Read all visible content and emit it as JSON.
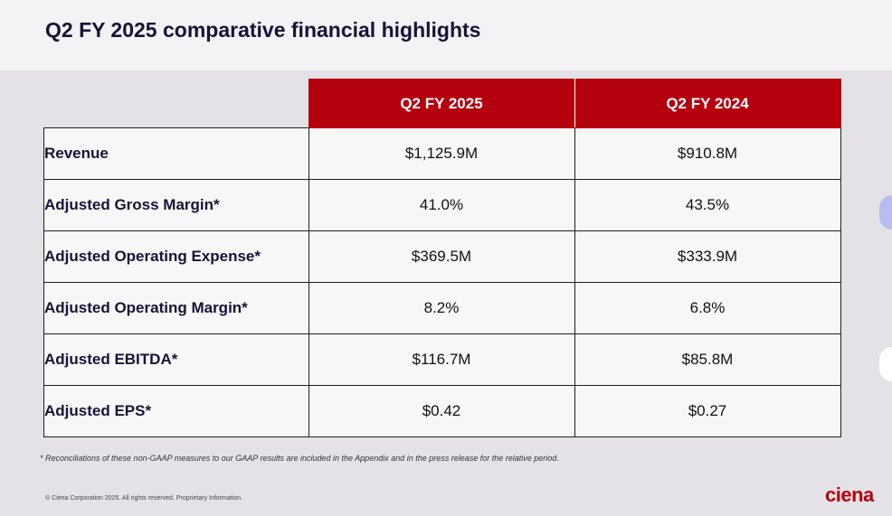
{
  "slide": {
    "title": "Q2 FY 2025 comparative financial highlights",
    "footnote": "* Reconciliations of these non-GAAP measures to our GAAP results are included in the Appendix and in the press release for the relative period.",
    "copyright": "© Ciena Corporation 2025. All rights reserved. Proprietary Information.",
    "logo_text": "ciena",
    "brand_color": "#b5000e"
  },
  "table": {
    "columns": [
      "Q2 FY 2025",
      "Q2 FY 2024"
    ],
    "rows": [
      {
        "label": "Revenue",
        "values": [
          "$1,125.9M",
          "$910.8M"
        ]
      },
      {
        "label": "Adjusted Gross Margin*",
        "values": [
          "41.0%",
          "43.5%"
        ]
      },
      {
        "label": "Adjusted Operating Expense*",
        "values": [
          "$369.5M",
          "$333.9M"
        ]
      },
      {
        "label": "Adjusted Operating Margin*",
        "values": [
          "8.2%",
          "6.8%"
        ]
      },
      {
        "label": "Adjusted EBITDA*",
        "values": [
          "$116.7M",
          "$85.8M"
        ]
      },
      {
        "label": "Adjusted EPS*",
        "values": [
          "$0.42",
          "$0.27"
        ]
      }
    ]
  }
}
